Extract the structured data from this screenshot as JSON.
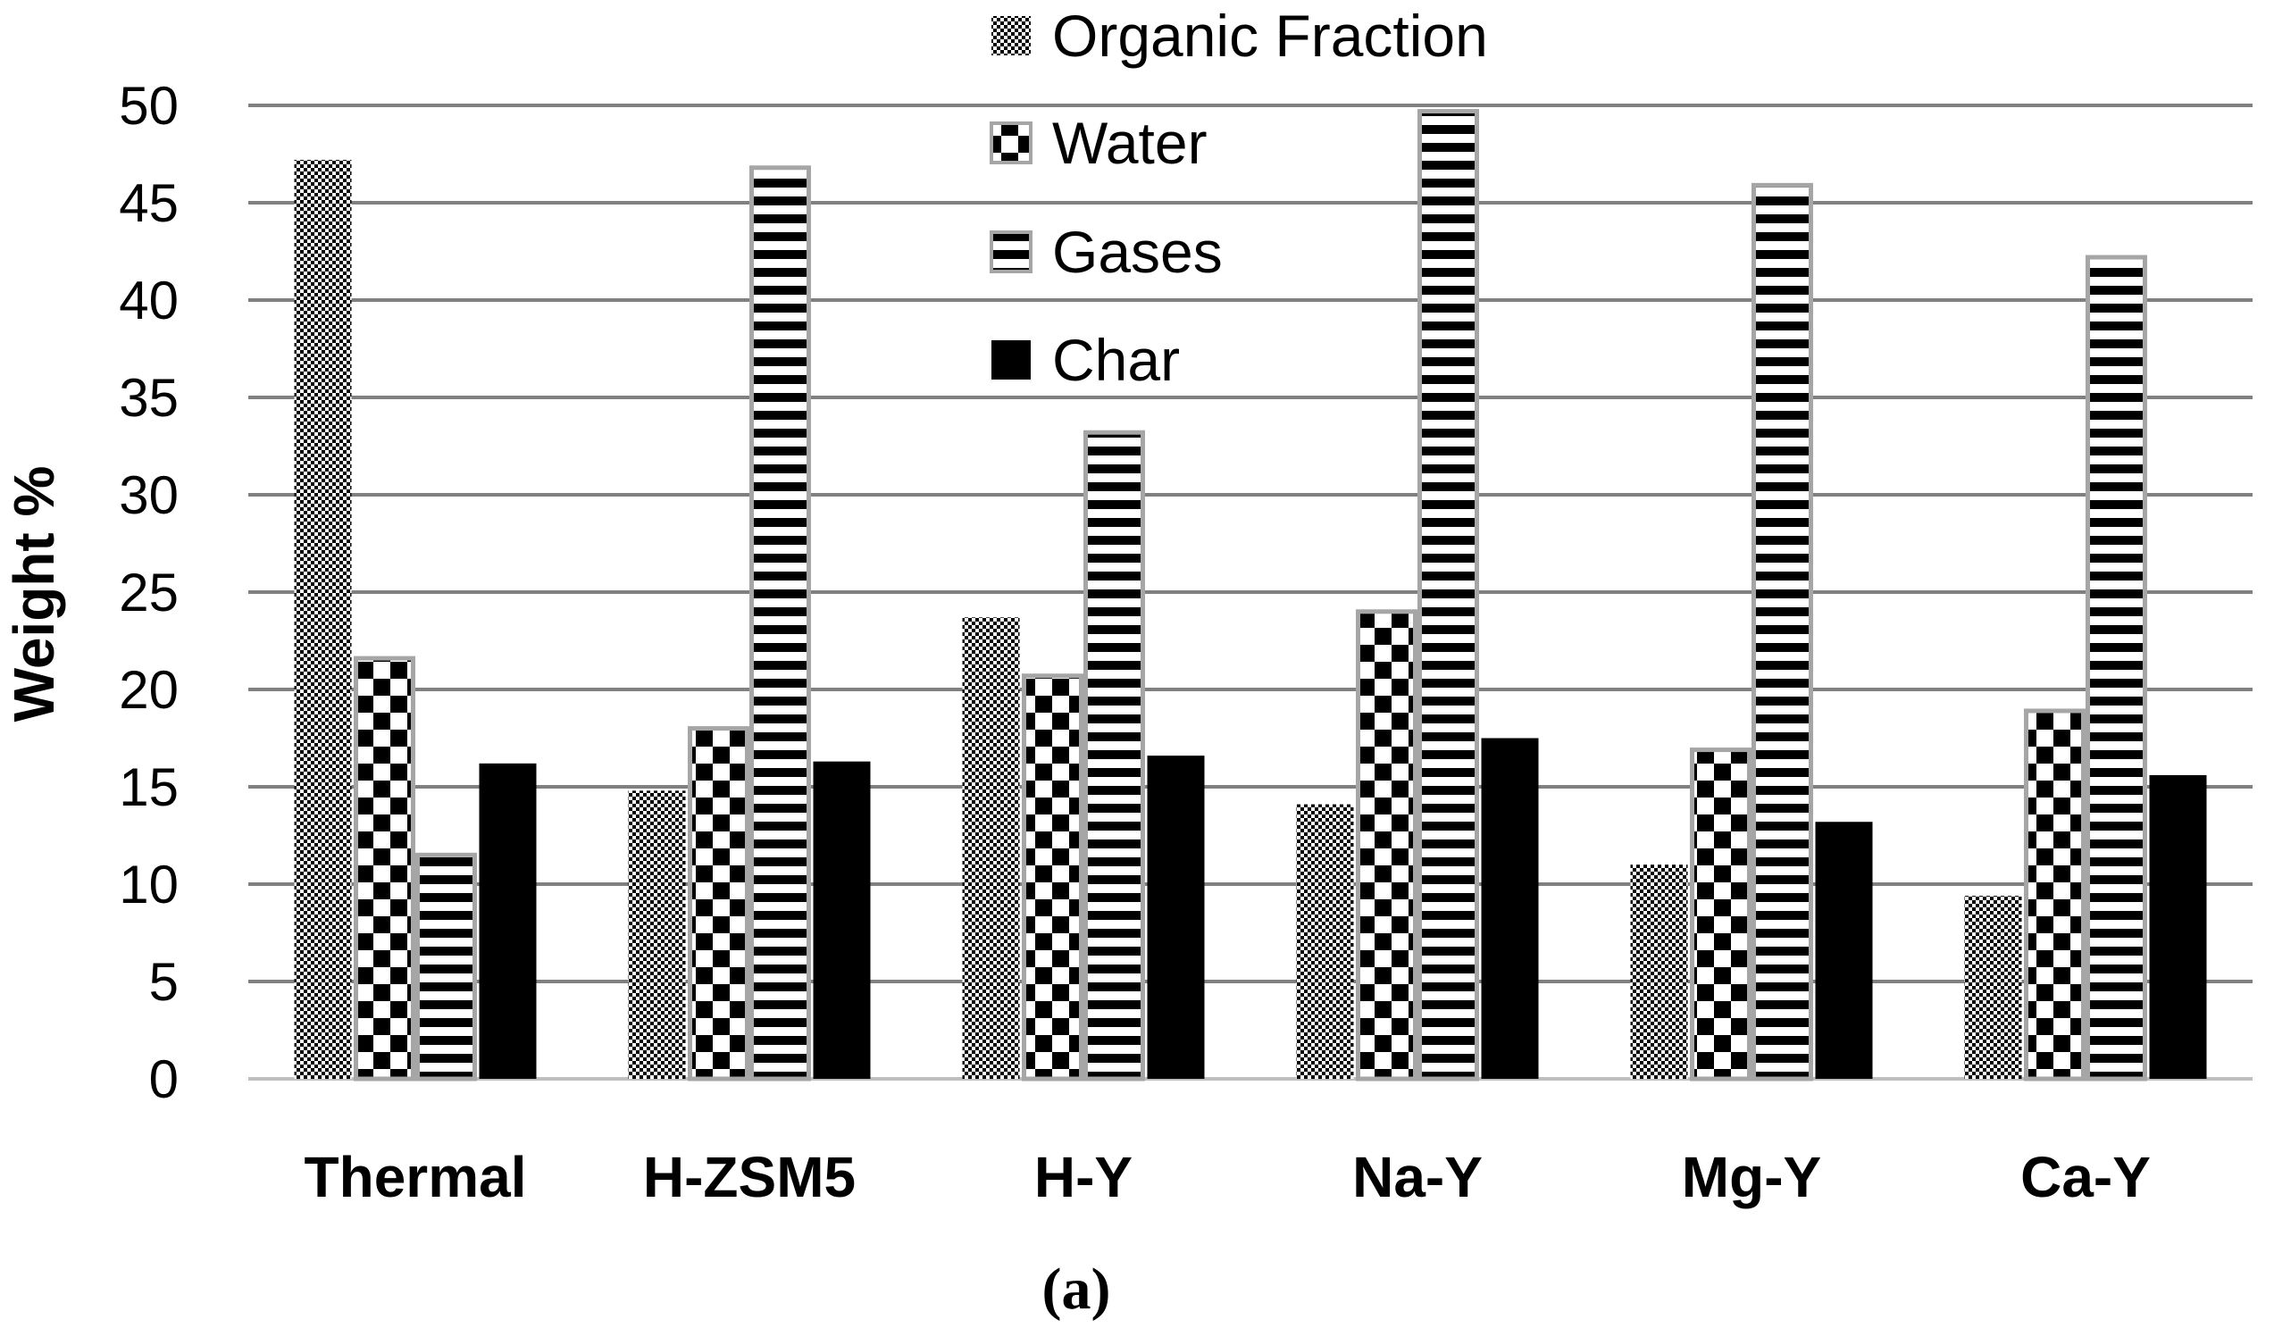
{
  "chart_data": {
    "type": "bar",
    "title": "",
    "caption": "(a)",
    "xlabel": "",
    "ylabel": "Weight %",
    "ylim": [
      0,
      50
    ],
    "yticks": [
      0,
      5,
      10,
      15,
      20,
      25,
      30,
      35,
      40,
      45,
      50
    ],
    "grid": true,
    "legend_position": "top-center",
    "categories": [
      "Thermal",
      "H-ZSM5",
      "H-Y",
      "Na-Y",
      "Mg-Y",
      "Ca-Y"
    ],
    "series": [
      {
        "name": "Organic Fraction",
        "pattern": "fine-checker",
        "values": [
          47.2,
          14.8,
          23.7,
          14.1,
          11.0,
          9.4
        ]
      },
      {
        "name": "Water",
        "pattern": "checker",
        "values": [
          21.6,
          18.0,
          20.7,
          24.0,
          16.9,
          18.9
        ]
      },
      {
        "name": "Gases",
        "pattern": "horizontal-stripes",
        "values": [
          11.5,
          46.8,
          33.2,
          49.7,
          45.9,
          42.2
        ]
      },
      {
        "name": "Char",
        "pattern": "solid",
        "values": [
          16.2,
          16.3,
          16.6,
          17.5,
          13.2,
          15.6
        ]
      }
    ],
    "colors": {
      "grid": "#808080",
      "bar_outline": "#a6a6a6",
      "axis": "#bfbfbf",
      "dark": "#000000"
    }
  }
}
